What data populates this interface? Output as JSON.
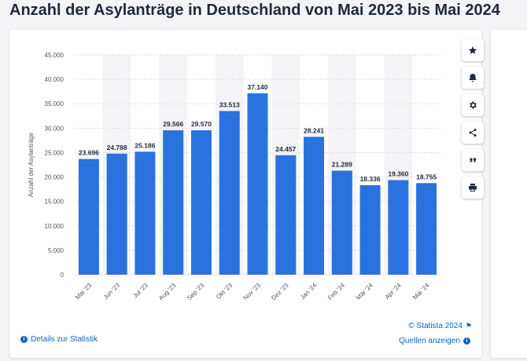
{
  "page": {
    "title": "Anzahl der Asylanträge in Deutschland von Mai 2023 bis Mai 2024"
  },
  "chart_data": {
    "type": "bar",
    "categories": [
      "Mai '23",
      "Jun '23",
      "Jul '23",
      "Aug '23",
      "Sep '23",
      "Okt '23",
      "Nov '23",
      "Dez '23",
      "Jan '24",
      "Feb '24",
      "Mär '24",
      "Apr '24",
      "Mai '24"
    ],
    "values": [
      23696,
      24788,
      25186,
      29566,
      29570,
      33513,
      37140,
      24457,
      28241,
      21289,
      18336,
      19360,
      18755
    ],
    "value_labels": [
      "23.696",
      "24.788",
      "25.186",
      "29.566",
      "29.570",
      "33.513",
      "37.140",
      "24.457",
      "28.241",
      "21.289",
      "18.336",
      "19.360",
      "18.755"
    ],
    "y_ticks": [
      0,
      5000,
      10000,
      15000,
      20000,
      25000,
      30000,
      35000,
      40000,
      45000
    ],
    "y_tick_labels": [
      "0",
      "5.000",
      "10.000",
      "15.000",
      "20.000",
      "25.000",
      "30.000",
      "35.000",
      "40.000",
      "45.000"
    ],
    "ylim": [
      0,
      45000
    ],
    "ylabel": "Anzahl der Asylanträge",
    "xlabel": "",
    "bar_color": "#2a72de",
    "alt_band_color": "#f4f4f6"
  },
  "actions": [
    {
      "name": "favorite",
      "icon": "star-icon"
    },
    {
      "name": "notification",
      "icon": "bell-icon"
    },
    {
      "name": "settings",
      "icon": "gear-icon"
    },
    {
      "name": "share",
      "icon": "share-icon"
    },
    {
      "name": "cite",
      "icon": "quote-icon"
    },
    {
      "name": "print",
      "icon": "print-icon"
    }
  ],
  "footer": {
    "copyright": "© Statista 2024",
    "details_link": "Details zur Statistik",
    "sources_link": "Quellen anzeigen"
  },
  "colors": {
    "accent": "#0b64c0",
    "title": "#1e2a3a",
    "icon": "#1e2a3a"
  }
}
